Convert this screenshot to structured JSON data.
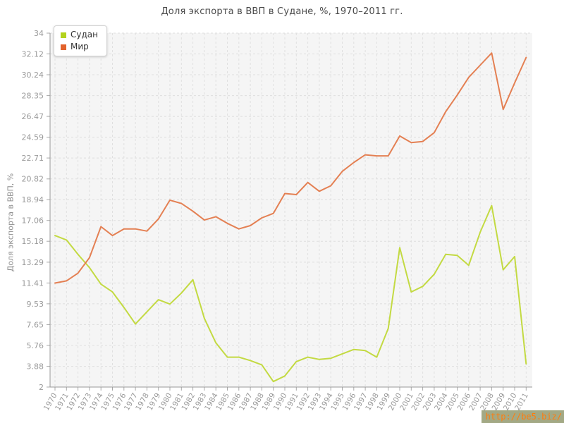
{
  "title": "Доля экспорта в ВВП в Судане, %, 1970–2011 гг.",
  "legend": {
    "items": [
      {
        "label": "Судан",
        "color": "#b3d21d"
      },
      {
        "label": "Мир",
        "color": "#e2622c"
      }
    ]
  },
  "y_axis": {
    "title": "Доля экспорта в ВВП, %",
    "tick_labels": [
      "2",
      "3.88",
      "5.76",
      "7.65",
      "9.53",
      "11.41",
      "13.29",
      "15.18",
      "17.06",
      "18.94",
      "20.82",
      "22.71",
      "24.59",
      "26.47",
      "28.35",
      "30.24",
      "32.12",
      "34"
    ]
  },
  "watermark": {
    "text": "http://be5.biz/"
  },
  "chart_data": {
    "type": "line",
    "title": "Доля экспорта в ВВП в Судане, %, 1970–2011 гг.",
    "xlabel": "",
    "ylabel": "Доля экспорта в ВВП, %",
    "ylim": [
      2,
      34
    ],
    "y_ticks": [
      2,
      3.88,
      5.76,
      7.65,
      9.53,
      11.41,
      13.29,
      15.18,
      17.06,
      18.94,
      20.82,
      22.71,
      24.59,
      26.47,
      28.35,
      30.24,
      32.12,
      34
    ],
    "grid": true,
    "legend_position": "top-left",
    "x": [
      1970,
      1971,
      1972,
      1973,
      1974,
      1975,
      1976,
      1977,
      1978,
      1979,
      1980,
      1981,
      1982,
      1983,
      1984,
      1985,
      1986,
      1987,
      1988,
      1989,
      1990,
      1991,
      1992,
      1993,
      1994,
      1995,
      1996,
      1997,
      1998,
      1999,
      2000,
      2001,
      2002,
      2003,
      2004,
      2005,
      2006,
      2007,
      2008,
      2009,
      2010,
      2011
    ],
    "series": [
      {
        "name": "Судан",
        "color": "#c0d838",
        "values": [
          15.7,
          15.3,
          14.0,
          12.8,
          11.3,
          10.6,
          9.2,
          7.7,
          8.8,
          9.9,
          9.5,
          10.5,
          11.7,
          8.2,
          6.0,
          4.7,
          4.7,
          4.4,
          4.0,
          2.5,
          3.0,
          4.3,
          4.7,
          4.5,
          4.6,
          5.0,
          5.4,
          5.3,
          4.7,
          7.3,
          14.6,
          10.6,
          11.1,
          12.2,
          14.0,
          13.9,
          13.0,
          16.0,
          18.4,
          12.6,
          13.8,
          4.1
        ]
      },
      {
        "name": "Мир",
        "color": "#e3794a",
        "values": [
          11.4,
          11.6,
          12.3,
          13.7,
          16.5,
          15.7,
          16.3,
          16.3,
          16.1,
          17.2,
          18.9,
          18.6,
          17.9,
          17.1,
          17.4,
          16.8,
          16.3,
          16.6,
          17.3,
          17.7,
          19.5,
          19.4,
          20.5,
          19.7,
          20.2,
          21.5,
          22.3,
          23.0,
          22.9,
          22.9,
          24.7,
          24.1,
          24.2,
          25.0,
          26.9,
          28.4,
          30.0,
          31.1,
          32.2,
          27.1,
          29.5,
          31.8
        ]
      }
    ]
  }
}
